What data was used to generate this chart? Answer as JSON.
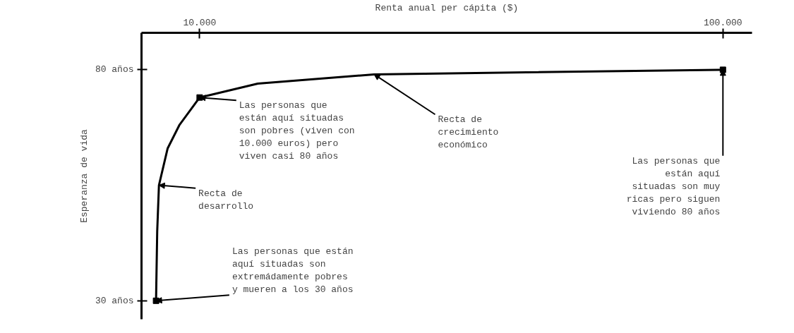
{
  "chart_data": {
    "type": "line",
    "xlabel": "Renta anual per cápita ($)",
    "ylabel": "Esperanza de vida",
    "x": [
      2500,
      2700,
      3000,
      4500,
      6500,
      10000,
      20000,
      40000,
      100000
    ],
    "series": [
      {
        "color": "#000000",
        "values": [
          30,
          45,
          55,
          63,
          68,
          74,
          77,
          79,
          80
        ]
      },
      {
        "type": "scatter",
        "color": "#000000",
        "x": [
          2500,
          10000,
          100000
        ],
        "values": [
          30,
          74,
          80
        ]
      }
    ],
    "xlim": [
      0,
      105000
    ],
    "ylim": [
      26,
      88
    ],
    "xticks": [
      {
        "value": 10000,
        "label": "10.000"
      },
      {
        "value": 100000,
        "label": "100.000"
      }
    ],
    "yticks": [
      {
        "value": 30,
        "label": "30 años"
      },
      {
        "value": 80,
        "label": "80 años"
      }
    ],
    "grid": false,
    "annotations": [
      {
        "text": "Recta de\ndesarrollo",
        "x": 3000,
        "y": 55
      },
      {
        "text": "Recta de\ncrecimiento\neconómico",
        "x": 40000,
        "y": 79
      },
      {
        "text": "Las personas que\nestán aquí situadas\nson pobres (viven con\n10.000 euros) pero\nviven casi 80 años",
        "x": 10000,
        "y": 74
      },
      {
        "text": "Las personas que\nestán aquí\nsituadas son muy\nricas pero siguen\nviviendo 80 años",
        "x": 100000,
        "y": 80
      },
      {
        "text": "Las personas que están\naquí situadas son\nextremádamente pobres\ny mueren a los 30 años",
        "x": 2500,
        "y": 30
      }
    ]
  }
}
